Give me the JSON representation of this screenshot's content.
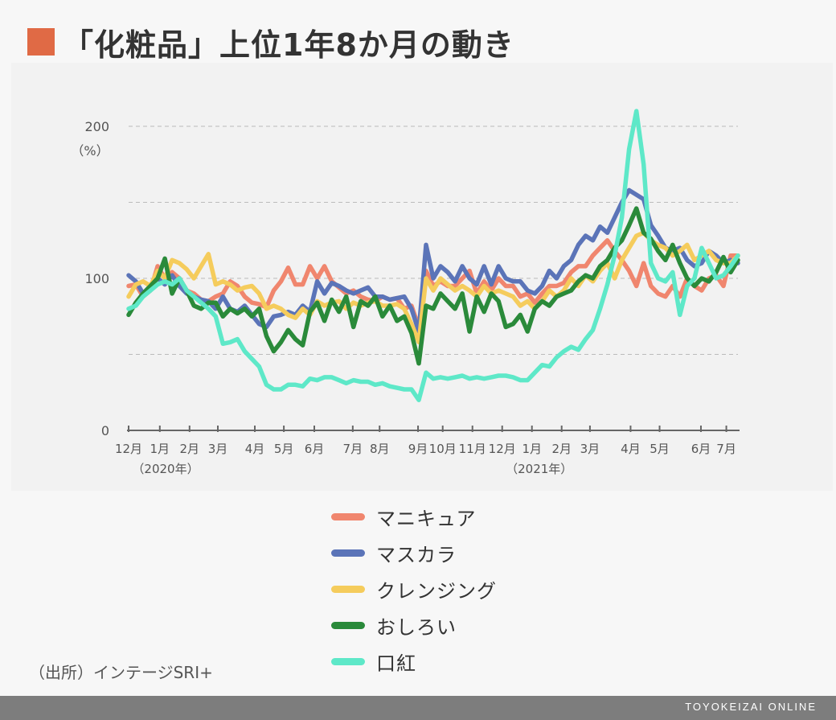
{
  "title": "「化粧品」上位1年8か月の動き",
  "title_color": "#e06a45",
  "source": "（出所）インテージSRI+",
  "footer": "TOYOKEIZAI ONLINE",
  "chart_data": {
    "type": "line",
    "ylabel": "（%）",
    "ylim": [
      0,
      205
    ],
    "yticks": [
      0,
      100,
      200
    ],
    "grid_values": [
      50,
      100,
      150,
      200
    ],
    "grid": "horizontal dashed",
    "legend_position": "below",
    "x_labels": [
      {
        "label": "12月",
        "at": 0,
        "sub": "（2020年）"
      },
      {
        "label": "1月",
        "at": 4.3
      },
      {
        "label": "2月",
        "at": 8.4
      },
      {
        "label": "3月",
        "at": 12.3
      },
      {
        "label": "4月",
        "at": 17.4
      },
      {
        "label": "5月",
        "at": 21.4
      },
      {
        "label": "6月",
        "at": 25.6
      },
      {
        "label": "7月",
        "at": 30.9
      },
      {
        "label": "8月",
        "at": 34.6
      },
      {
        "label": "9月",
        "at": 39.9
      },
      {
        "label": "10月",
        "at": 43.3
      },
      {
        "label": "11月",
        "at": 47.4
      },
      {
        "label": "12月",
        "at": 51.5,
        "sub": "（2021年）"
      },
      {
        "label": "1月",
        "at": 55.6
      },
      {
        "label": "2月",
        "at": 59.7
      },
      {
        "label": "3月",
        "at": 63.6
      },
      {
        "label": "4月",
        "at": 69.2
      },
      {
        "label": "5月",
        "at": 73.2
      },
      {
        "label": "6月",
        "at": 78.9
      },
      {
        "label": "7月",
        "at": 82.4
      }
    ],
    "series": [
      {
        "name": "マニキュア",
        "color": "#f0866e",
        "values": [
          95,
          96,
          88,
          92,
          108,
          100,
          104,
          100,
          92,
          90,
          86,
          85,
          88,
          90,
          98,
          95,
          88,
          84,
          83,
          81,
          92,
          98,
          107,
          96,
          96,
          108,
          100,
          108,
          98,
          94,
          90,
          92,
          88,
          86,
          85,
          88,
          86,
          87,
          80,
          82,
          68,
          105,
          95,
          98,
          95,
          95,
          100,
          105,
          90,
          98,
          92,
          100,
          95,
          95,
          88,
          90,
          84,
          90,
          95,
          95,
          97,
          104,
          108,
          108,
          115,
          120,
          125,
          118,
          112,
          105,
          95,
          110,
          95,
          90,
          88,
          95,
          88,
          100,
          95,
          92,
          100,
          102,
          95,
          115,
          115
        ]
      },
      {
        "name": "マスカラ",
        "color": "#5b74b8",
        "values": [
          102,
          98,
          90,
          95,
          100,
          96,
          102,
          95,
          90,
          88,
          86,
          85,
          80,
          88,
          80,
          78,
          82,
          76,
          70,
          68,
          75,
          76,
          78,
          76,
          82,
          78,
          98,
          90,
          97,
          95,
          92,
          90,
          92,
          94,
          88,
          88,
          86,
          87,
          88,
          80,
          65,
          122,
          100,
          108,
          104,
          98,
          108,
          100,
          96,
          108,
          96,
          108,
          100,
          98,
          98,
          92,
          90,
          95,
          105,
          100,
          108,
          112,
          122,
          128,
          125,
          134,
          130,
          140,
          150,
          158,
          155,
          152,
          135,
          128,
          120,
          118,
          120,
          112,
          108,
          110,
          118,
          115,
          110,
          112,
          110
        ]
      },
      {
        "name": "クレンジング",
        "color": "#f5cc5c",
        "values": [
          88,
          96,
          98,
          95,
          105,
          100,
          112,
          110,
          106,
          100,
          108,
          116,
          96,
          98,
          96,
          92,
          94,
          95,
          90,
          80,
          82,
          80,
          76,
          74,
          80,
          76,
          85,
          82,
          84,
          85,
          80,
          84,
          82,
          84,
          85,
          82,
          82,
          83,
          80,
          70,
          58,
          100,
          92,
          100,
          96,
          92,
          95,
          92,
          88,
          95,
          90,
          92,
          90,
          88,
          82,
          85,
          80,
          85,
          92,
          88,
          92,
          100,
          95,
          102,
          98,
          105,
          110,
          100,
          112,
          120,
          128,
          130,
          125,
          122,
          120,
          115,
          118,
          122,
          112,
          115,
          118,
          112,
          110,
          110,
          115
        ]
      },
      {
        "name": "おしろい",
        "color": "#2a8a3a",
        "values": [
          76,
          84,
          90,
          95,
          100,
          113,
          90,
          100,
          92,
          82,
          80,
          84,
          84,
          75,
          80,
          77,
          80,
          75,
          80,
          62,
          52,
          58,
          66,
          60,
          56,
          78,
          84,
          72,
          86,
          78,
          88,
          68,
          85,
          82,
          88,
          75,
          82,
          72,
          75,
          64,
          44,
          82,
          80,
          90,
          85,
          80,
          90,
          65,
          88,
          78,
          90,
          85,
          68,
          70,
          76,
          65,
          80,
          85,
          82,
          88,
          90,
          92,
          98,
          102,
          100,
          108,
          112,
          120,
          125,
          135,
          146,
          130,
          126,
          118,
          112,
          122,
          110,
          100,
          95,
          100,
          98,
          104,
          114,
          104,
          112
        ]
      },
      {
        "name": "口紅",
        "color": "#5ee8c8",
        "values": [
          80,
          82,
          88,
          92,
          96,
          98,
          96,
          100,
          92,
          88,
          84,
          80,
          75,
          57,
          58,
          60,
          52,
          47,
          42,
          30,
          27,
          27,
          30,
          30,
          29,
          34,
          33,
          35,
          35,
          33,
          31,
          33,
          32,
          32,
          30,
          31,
          29,
          28,
          27,
          27,
          20,
          38,
          34,
          35,
          34,
          35,
          36,
          34,
          35,
          34,
          35,
          36,
          36,
          35,
          33,
          33,
          38,
          43,
          42,
          48,
          52,
          55,
          53,
          60,
          66,
          80,
          96,
          115,
          140,
          185,
          210,
          175,
          110,
          100,
          98,
          104,
          76,
          95,
          100,
          120,
          110,
          100,
          102,
          108,
          115
        ]
      }
    ]
  }
}
